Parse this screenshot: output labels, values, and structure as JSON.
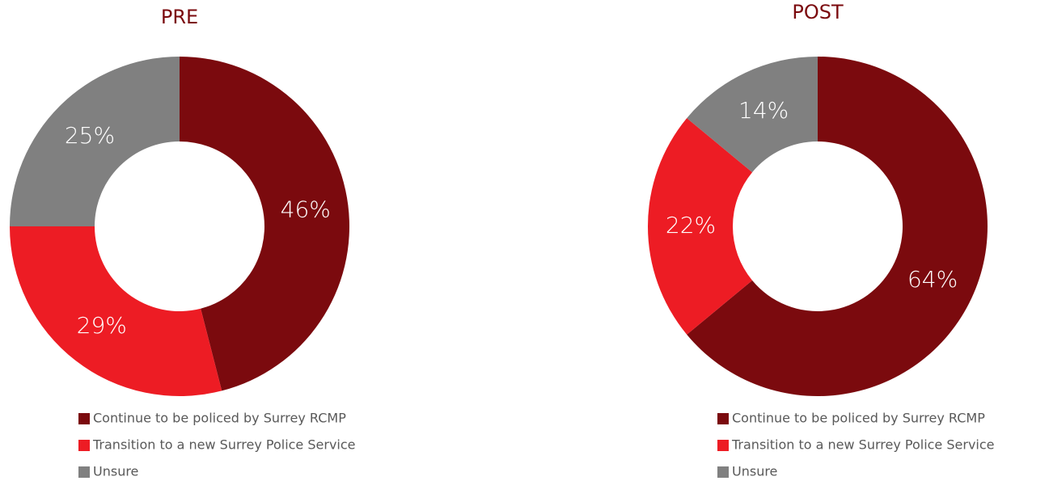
{
  "chart_data": [
    {
      "type": "donut",
      "title": "PRE",
      "categories": [
        "Continue to be policed by Surrey RCMP",
        "Transition to a new Surrey Police Service",
        "Unsure"
      ],
      "values": [
        46,
        29,
        25
      ],
      "value_labels": [
        "46%",
        "29%",
        "25%"
      ],
      "colors": [
        "#7b0a0e",
        "#ed1c24",
        "#808080"
      ],
      "legend": "bottom"
    },
    {
      "type": "donut",
      "title": "POST",
      "categories": [
        "Continue to be policed by Surrey RCMP",
        "Transition to a new Surrey Police Service",
        "Unsure"
      ],
      "values": [
        64,
        22,
        14
      ],
      "value_labels": [
        "64%",
        "22%",
        "14%"
      ],
      "colors": [
        "#7b0a0e",
        "#ed1c24",
        "#808080"
      ],
      "legend": "bottom"
    }
  ]
}
